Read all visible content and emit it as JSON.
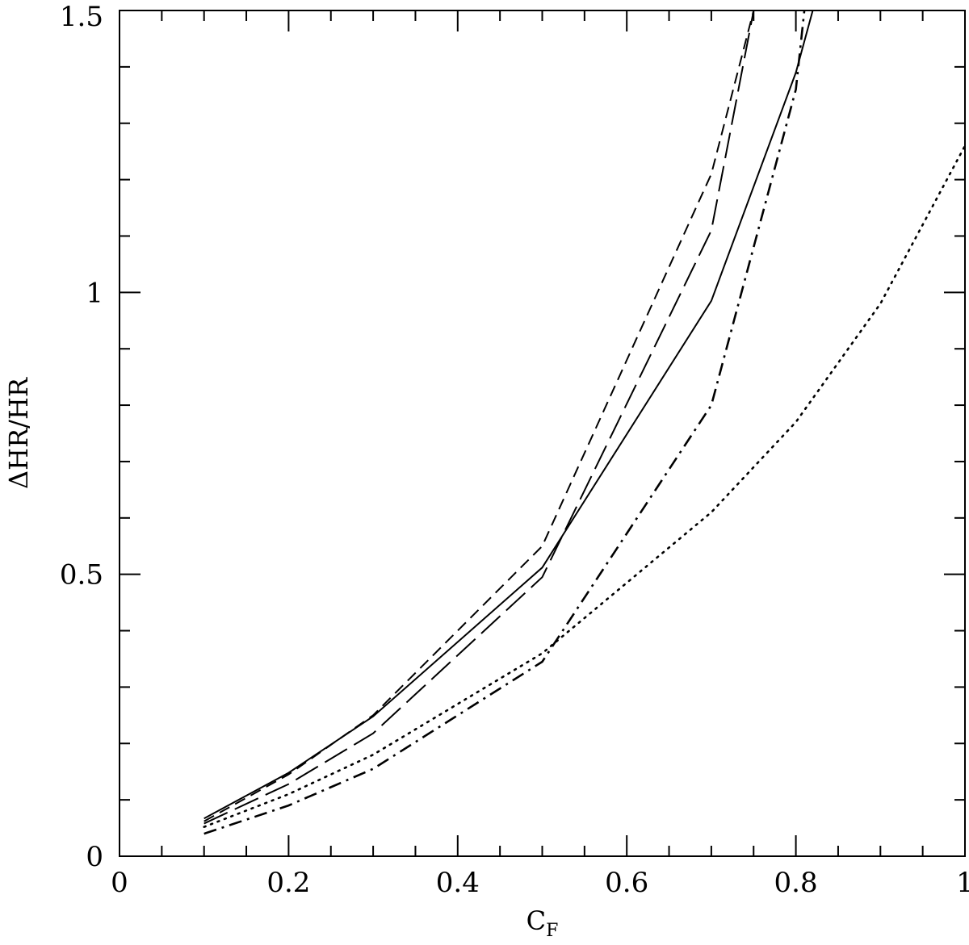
{
  "chart_data": {
    "type": "line",
    "title": "",
    "xlabel": "C",
    "xlabel_subscript": "F",
    "ylabel": "ΔHR/HR",
    "xlim": [
      0,
      1
    ],
    "ylim": [
      0,
      1.5
    ],
    "x_ticks": [
      0,
      0.2,
      0.4,
      0.6,
      0.8,
      1
    ],
    "x_tick_labels": [
      "0",
      "0.2",
      "0.4",
      "0.6",
      "0.8",
      "1"
    ],
    "y_ticks": [
      0,
      0.5,
      1,
      1.5
    ],
    "y_tick_labels": [
      "0",
      "0.5",
      "1",
      "1.5"
    ],
    "grid": false,
    "legend": "none",
    "series": [
      {
        "style": "solid",
        "x": [
          0.1,
          0.2,
          0.3,
          0.5,
          0.7,
          0.8,
          0.82
        ],
        "y": [
          0.067,
          0.148,
          0.248,
          0.512,
          0.985,
          1.39,
          1.5
        ]
      },
      {
        "style": "short-dash",
        "x": [
          0.1,
          0.2,
          0.3,
          0.5,
          0.7,
          0.75
        ],
        "y": [
          0.062,
          0.145,
          0.25,
          0.55,
          1.21,
          1.5
        ]
      },
      {
        "style": "long-dash",
        "x": [
          0.1,
          0.2,
          0.3,
          0.5,
          0.7,
          0.75
        ],
        "y": [
          0.058,
          0.128,
          0.218,
          0.495,
          1.11,
          1.5
        ]
      },
      {
        "style": "dotted",
        "x": [
          0.1,
          0.2,
          0.3,
          0.5,
          0.7,
          0.8,
          0.9,
          1.0
        ],
        "y": [
          0.052,
          0.11,
          0.18,
          0.36,
          0.61,
          0.77,
          0.98,
          1.26
        ]
      },
      {
        "style": "dash-dot",
        "x": [
          0.1,
          0.2,
          0.3,
          0.5,
          0.7,
          0.8,
          0.81
        ],
        "y": [
          0.04,
          0.09,
          0.155,
          0.345,
          0.8,
          1.36,
          1.5
        ]
      }
    ]
  }
}
